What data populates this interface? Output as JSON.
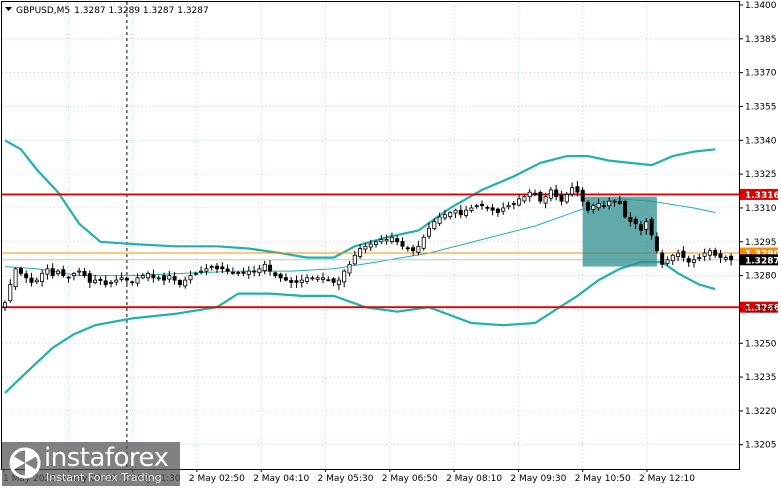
{
  "title": {
    "symbol": "GBPUSD,M5",
    "ohlc": "1.3287 1.3289 1.3287 1.3287"
  },
  "colors": {
    "band": "#20b2aa",
    "mid": "#20b2aa",
    "resistance": "#e00000",
    "pivot": "#ff8c00",
    "box": "#2f8f8f",
    "candle_up": "#ffffff",
    "candle_down": "#000000",
    "grid": "#9bb3c9",
    "tag_text": "#ffffff",
    "price_tag": "#000000"
  },
  "watermark": {
    "brand": "instaforex",
    "tagline": "Instant Forex Trading",
    "logo_icon": "instaforex-logo-icon"
  },
  "chart_data": {
    "type": "candlestick",
    "y_axis": {
      "min": 1.32,
      "max": 1.34,
      "ticks": [
        "1.3400",
        "1.3385",
        "1.3370",
        "1.3355",
        "1.3340",
        "1.3325",
        "1.3310",
        "1.3295",
        "1.3280",
        "1.3265",
        "1.3250",
        "1.3235",
        "1.3220",
        "1.3205"
      ]
    },
    "x_axis": {
      "labels": [
        "1 May 2025",
        "2 May 00:10",
        "2 May 01:30",
        "2 May 02:50",
        "2 May 04:10",
        "2 May 05:30",
        "2 May 06:50",
        "2 May 08:10",
        "2 May 09:30",
        "2 May 10:50",
        "2 May 12:10"
      ]
    },
    "levels": [
      {
        "name": "resistance",
        "value": 1.3316,
        "label": "1.3316"
      },
      {
        "name": "pivot",
        "value": 1.329,
        "label": "1.3290"
      },
      {
        "name": "support",
        "value": 1.3266,
        "label": "1.3266"
      }
    ],
    "current_price": {
      "value": 1.3287,
      "label": "1.3287"
    },
    "highlight_box": {
      "from_index": 109,
      "to_index": 123,
      "top": 1.3315,
      "bottom": 1.3284
    },
    "vline_index": 23,
    "closes": [
      1.3268,
      1.3276,
      1.3283,
      1.3281,
      1.3279,
      1.3277,
      1.3278,
      1.3281,
      1.3283,
      1.328,
      1.3282,
      1.328,
      1.3279,
      1.3281,
      1.3282,
      1.328,
      1.3277,
      1.3278,
      1.3278,
      1.3276,
      1.3277,
      1.3278,
      1.3279,
      1.3278,
      1.3277,
      1.3279,
      1.328,
      1.3281,
      1.3279,
      1.3279,
      1.3278,
      1.328,
      1.3278,
      1.3276,
      1.3278,
      1.328,
      1.3281,
      1.3282,
      1.3283,
      1.3284,
      1.3283,
      1.3283,
      1.3282,
      1.3281,
      1.3281,
      1.3281,
      1.3282,
      1.3282,
      1.3283,
      1.3285,
      1.3282,
      1.328,
      1.3279,
      1.3278,
      1.3277,
      1.3277,
      1.3278,
      1.3279,
      1.3279,
      1.3279,
      1.3279,
      1.3278,
      1.3277,
      1.3278,
      1.3282,
      1.3285,
      1.3289,
      1.3292,
      1.3293,
      1.3294,
      1.3295,
      1.3296,
      1.3296,
      1.3297,
      1.3295,
      1.3293,
      1.3292,
      1.3291,
      1.3293,
      1.3297,
      1.3301,
      1.3304,
      1.3306,
      1.3307,
      1.3308,
      1.3309,
      1.3307,
      1.3309,
      1.331,
      1.3311,
      1.3311,
      1.331,
      1.3309,
      1.3308,
      1.331,
      1.3311,
      1.3312,
      1.3314,
      1.3315,
      1.3317,
      1.3316,
      1.3313,
      1.3315,
      1.3318,
      1.3315,
      1.3313,
      1.3316,
      1.3319,
      1.3317,
      1.3313,
      1.3309,
      1.3311,
      1.3312,
      1.3311,
      1.3313,
      1.3313,
      1.3312,
      1.3306,
      1.3304,
      1.3303,
      1.33,
      1.3304,
      1.3298,
      1.3291,
      1.3285,
      1.3287,
      1.3289,
      1.329,
      1.3288,
      1.3286,
      1.3287,
      1.3288,
      1.329,
      1.3291,
      1.3289,
      1.3288,
      1.3288,
      1.3287
    ],
    "bands": {
      "upper": [
        [
          0,
          1.334
        ],
        [
          3,
          1.3336
        ],
        [
          6,
          1.3327
        ],
        [
          10,
          1.3317
        ],
        [
          14,
          1.3303
        ],
        [
          18,
          1.3295
        ],
        [
          24,
          1.3294
        ],
        [
          32,
          1.3293
        ],
        [
          40,
          1.3293
        ],
        [
          46,
          1.3292
        ],
        [
          52,
          1.329
        ],
        [
          57,
          1.3288
        ],
        [
          62,
          1.3288
        ],
        [
          66,
          1.3293
        ],
        [
          72,
          1.3297
        ],
        [
          78,
          1.33
        ],
        [
          84,
          1.331
        ],
        [
          90,
          1.3318
        ],
        [
          96,
          1.3324
        ],
        [
          101,
          1.333
        ],
        [
          106,
          1.3333
        ],
        [
          110,
          1.3333
        ],
        [
          114,
          1.3331
        ],
        [
          118,
          1.333
        ],
        [
          122,
          1.3329
        ],
        [
          126,
          1.3333
        ],
        [
          130,
          1.3335
        ],
        [
          134,
          1.3336
        ]
      ],
      "middle": [
        [
          0,
          1.3284
        ],
        [
          6,
          1.3283
        ],
        [
          14,
          1.328
        ],
        [
          24,
          1.328
        ],
        [
          34,
          1.3281
        ],
        [
          44,
          1.3282
        ],
        [
          54,
          1.3282
        ],
        [
          62,
          1.3283
        ],
        [
          70,
          1.3286
        ],
        [
          80,
          1.329
        ],
        [
          90,
          1.3296
        ],
        [
          100,
          1.3302
        ],
        [
          106,
          1.3307
        ],
        [
          112,
          1.3312
        ],
        [
          116,
          1.3314
        ],
        [
          122,
          1.3313
        ],
        [
          130,
          1.331
        ],
        [
          134,
          1.3308
        ]
      ],
      "lower": [
        [
          0,
          1.3228
        ],
        [
          4,
          1.3237
        ],
        [
          9,
          1.3248
        ],
        [
          13,
          1.3254
        ],
        [
          17,
          1.3258
        ],
        [
          24,
          1.3261
        ],
        [
          32,
          1.3263
        ],
        [
          40,
          1.3266
        ],
        [
          44,
          1.3272
        ],
        [
          50,
          1.3272
        ],
        [
          56,
          1.3271
        ],
        [
          62,
          1.3271
        ],
        [
          68,
          1.3266
        ],
        [
          74,
          1.3264
        ],
        [
          80,
          1.3266
        ],
        [
          88,
          1.3259
        ],
        [
          94,
          1.3258
        ],
        [
          100,
          1.3259
        ],
        [
          104,
          1.3265
        ],
        [
          108,
          1.3271
        ],
        [
          112,
          1.3278
        ],
        [
          116,
          1.3283
        ],
        [
          120,
          1.3286
        ],
        [
          124,
          1.3286
        ],
        [
          127,
          1.3281
        ],
        [
          131,
          1.3276
        ],
        [
          134,
          1.3274
        ]
      ]
    }
  }
}
